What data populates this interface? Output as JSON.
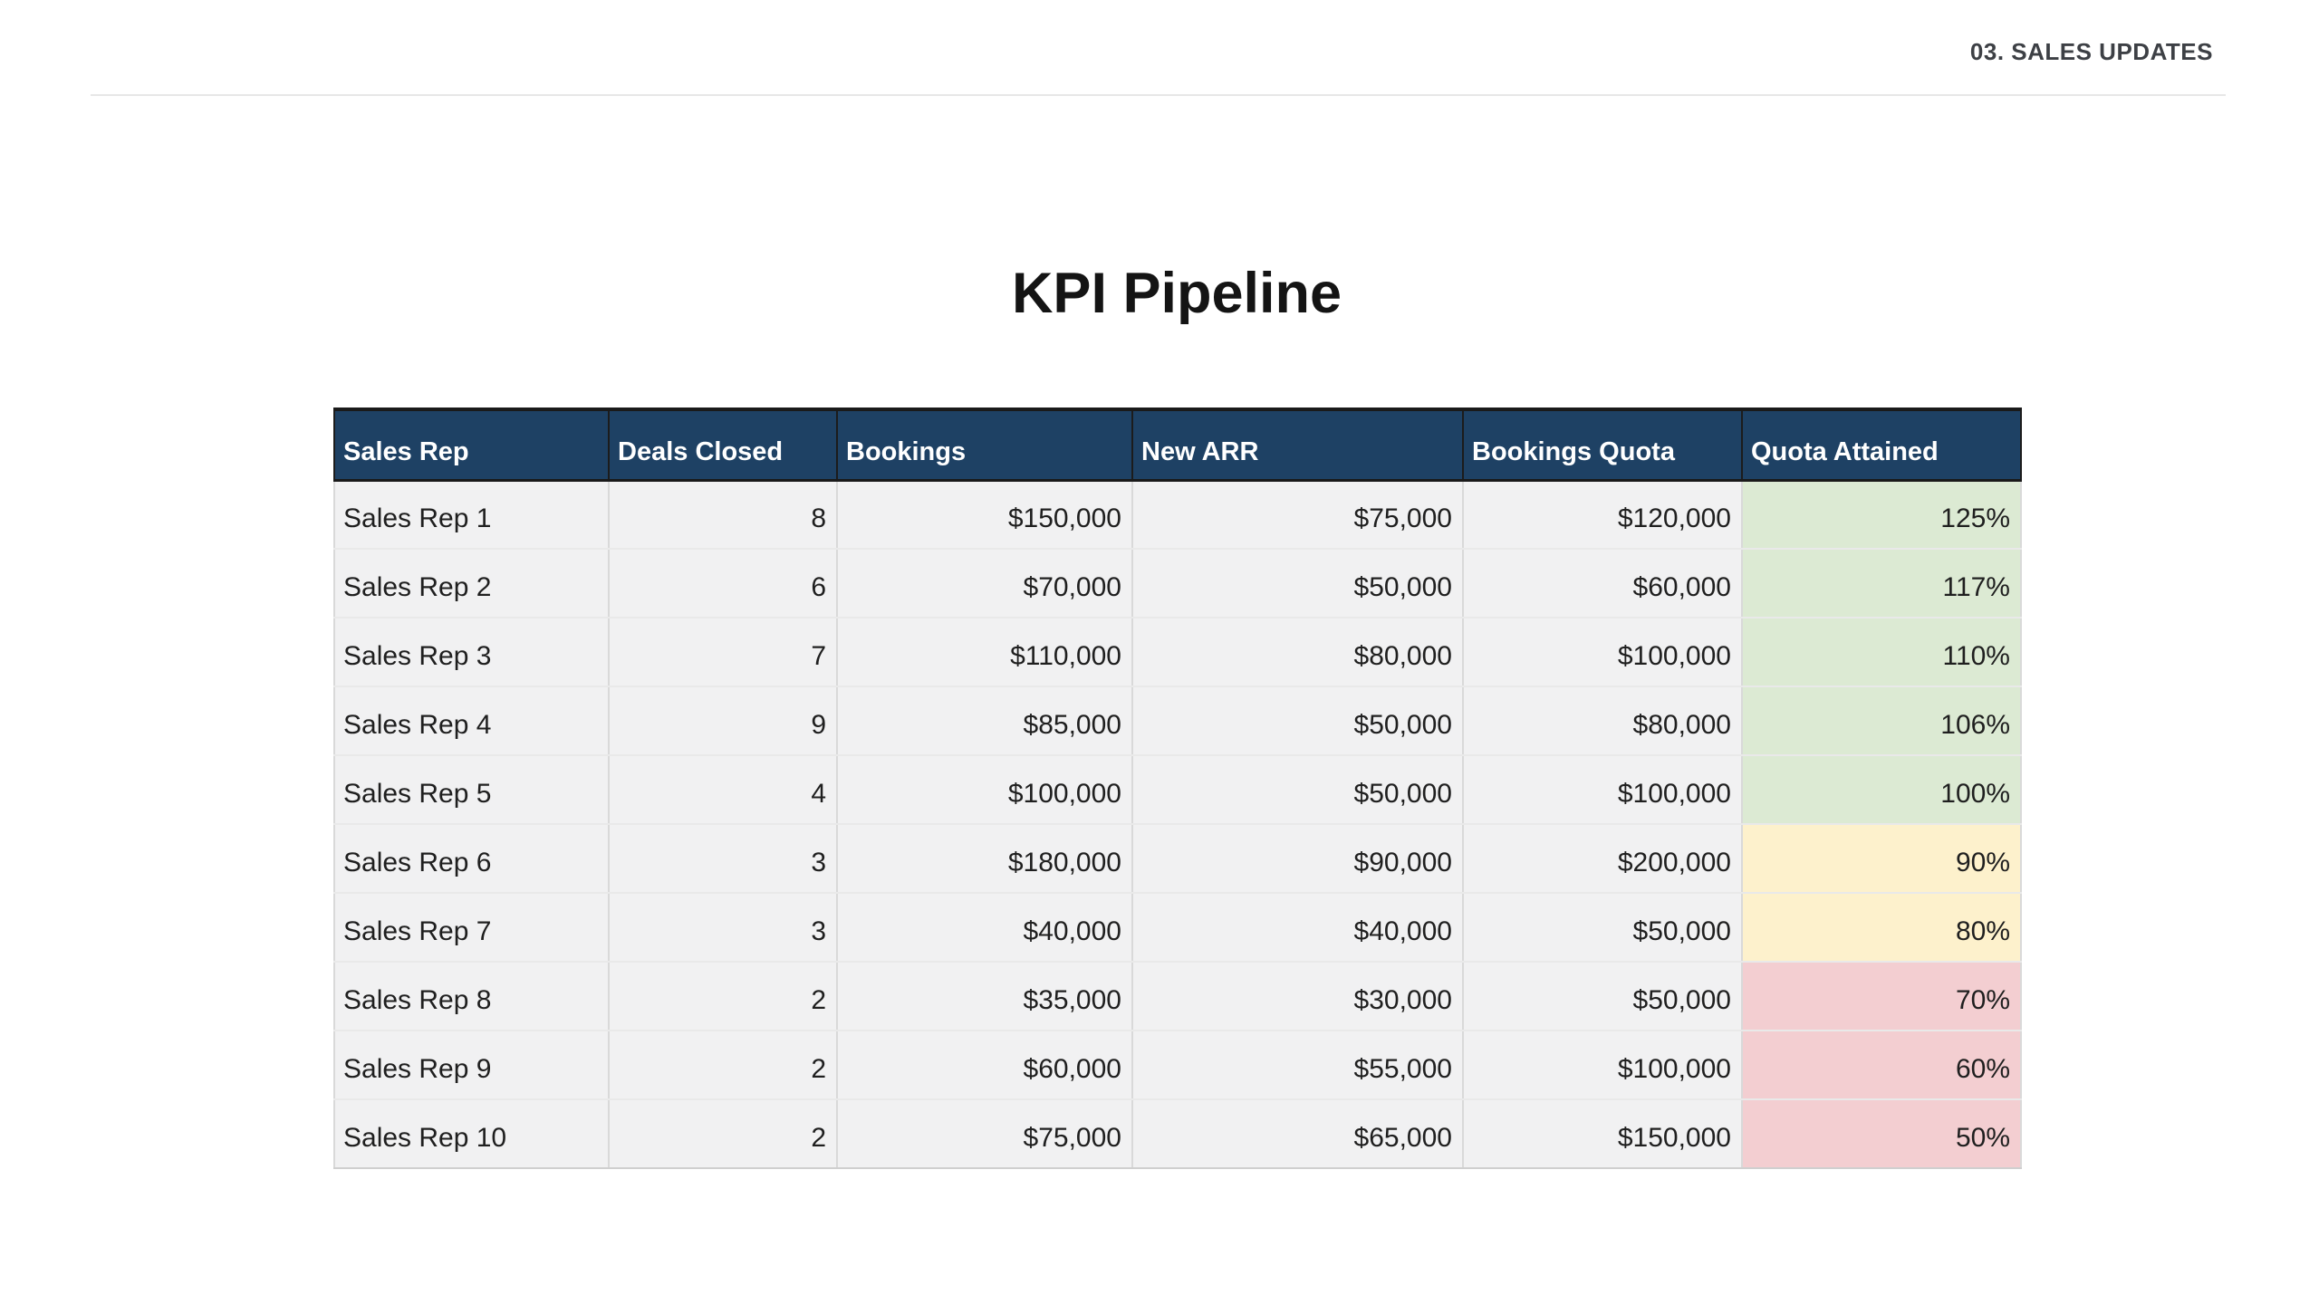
{
  "header": {
    "section_label": "03. SALES UPDATES"
  },
  "title": "KPI Pipeline",
  "table": {
    "columns": [
      "Sales Rep",
      "Deals Closed",
      "Bookings",
      "New ARR",
      "Bookings Quota",
      "Quota Attained"
    ],
    "rows": [
      {
        "rep": "Sales Rep 1",
        "deals": "8",
        "bookings": "$150,000",
        "new_arr": "$75,000",
        "quota": "$120,000",
        "attained": "125%",
        "status": "green"
      },
      {
        "rep": "Sales Rep 2",
        "deals": "6",
        "bookings": "$70,000",
        "new_arr": "$50,000",
        "quota": "$60,000",
        "attained": "117%",
        "status": "green"
      },
      {
        "rep": "Sales Rep 3",
        "deals": "7",
        "bookings": "$110,000",
        "new_arr": "$80,000",
        "quota": "$100,000",
        "attained": "110%",
        "status": "green"
      },
      {
        "rep": "Sales Rep 4",
        "deals": "9",
        "bookings": "$85,000",
        "new_arr": "$50,000",
        "quota": "$80,000",
        "attained": "106%",
        "status": "green"
      },
      {
        "rep": "Sales Rep 5",
        "deals": "4",
        "bookings": "$100,000",
        "new_arr": "$50,000",
        "quota": "$100,000",
        "attained": "100%",
        "status": "green"
      },
      {
        "rep": "Sales Rep 6",
        "deals": "3",
        "bookings": "$180,000",
        "new_arr": "$90,000",
        "quota": "$200,000",
        "attained": "90%",
        "status": "yellow"
      },
      {
        "rep": "Sales Rep 7",
        "deals": "3",
        "bookings": "$40,000",
        "new_arr": "$40,000",
        "quota": "$50,000",
        "attained": "80%",
        "status": "yellow"
      },
      {
        "rep": "Sales Rep 8",
        "deals": "2",
        "bookings": "$35,000",
        "new_arr": "$30,000",
        "quota": "$50,000",
        "attained": "70%",
        "status": "red"
      },
      {
        "rep": "Sales Rep 9",
        "deals": "2",
        "bookings": "$60,000",
        "new_arr": "$55,000",
        "quota": "$100,000",
        "attained": "60%",
        "status": "red"
      },
      {
        "rep": "Sales Rep 10",
        "deals": "2",
        "bookings": "$75,000",
        "new_arr": "$65,000",
        "quota": "$150,000",
        "attained": "50%",
        "status": "red"
      }
    ]
  },
  "colors": {
    "header_bg": "#1e4164",
    "green": "#dcead3",
    "yellow": "#fdf1cc",
    "red": "#f3ced1"
  }
}
